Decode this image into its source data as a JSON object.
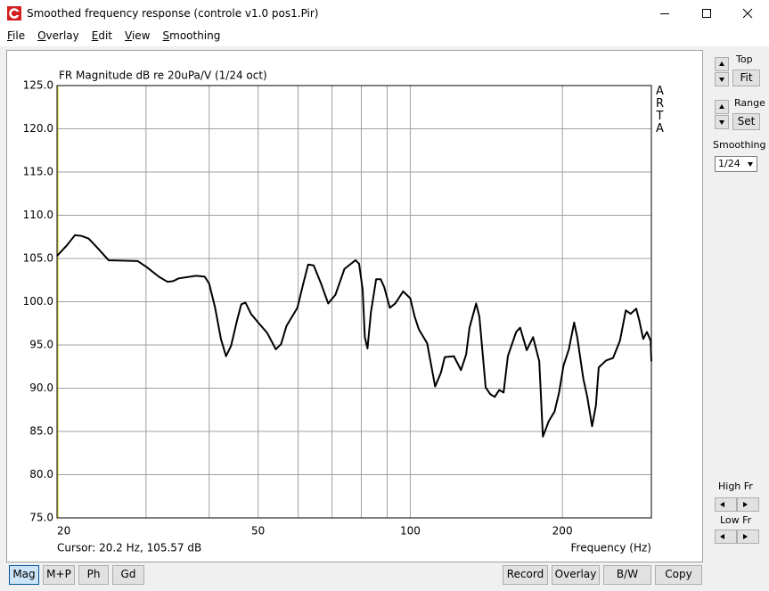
{
  "window": {
    "title": "Smoothed frequency response (controle v1.0 pos1.Pir)"
  },
  "menu": [
    "File",
    "Overlay",
    "Edit",
    "View",
    "Smoothing"
  ],
  "chart_data": {
    "type": "line",
    "title": "FR Magnitude dB re 20uPa/V (1/24 oct)",
    "watermark": "ARTA",
    "x_label": "Frequency (Hz)",
    "cursor_text": "Cursor: 20.2 Hz, 105.57 dB",
    "x": [
      20,
      20.9,
      21.7,
      22.4,
      23.1,
      23.9,
      25.3,
      28.9,
      30.1,
      31.8,
      33.1,
      34.0,
      34.8,
      37.7,
      39.2,
      40,
      41.1,
      42.2,
      43.2,
      44.2,
      45.4,
      46.3,
      47.2,
      48.4,
      50,
      52.1,
      54.2,
      55.5,
      56.9,
      59.8,
      61.3,
      62.8,
      64.4,
      66.6,
      68.8,
      71.1,
      74.1,
      77.9,
      79.2,
      80.5,
      81.3,
      82.3,
      83.6,
      85.6,
      87.4,
      88.8,
      91.1,
      93.4,
      96.8,
      100,
      102,
      104,
      108,
      112,
      115,
      117,
      122,
      126,
      129,
      131,
      135,
      137,
      141,
      144,
      147,
      150,
      153,
      156,
      162,
      165,
      170,
      175,
      180,
      183,
      188,
      193,
      197,
      201,
      206,
      211,
      214,
      220,
      224,
      229,
      233,
      236,
      244,
      252,
      260,
      267,
      273,
      280,
      284,
      289,
      294,
      299,
      300
    ],
    "series": [
      {
        "color": "#000000",
        "values": [
          105.3,
          106.5,
          107.7,
          107.6,
          107.3,
          106.4,
          104.8,
          104.7,
          104.0,
          102.9,
          102.3,
          102.4,
          102.7,
          103.0,
          102.9,
          102.1,
          99.3,
          95.7,
          93.7,
          94.9,
          97.8,
          99.7,
          99.9,
          98.6,
          97.6,
          96.4,
          94.5,
          95.1,
          97.2,
          99.3,
          101.9,
          104.3,
          104.2,
          102.1,
          99.8,
          100.8,
          103.8,
          104.8,
          104.4,
          101.4,
          95.9,
          94.6,
          98.8,
          102.6,
          102.6,
          101.7,
          99.3,
          99.8,
          101.2,
          100.4,
          98.3,
          96.8,
          95.2,
          90.2,
          91.8,
          93.6,
          93.7,
          92.1,
          93.9,
          97.0,
          99.8,
          98.3,
          90.1,
          89.3,
          89.0,
          89.8,
          89.5,
          93.7,
          96.5,
          97.0,
          94.4,
          95.9,
          93.1,
          84.4,
          86.2,
          87.3,
          89.5,
          92.6,
          94.5,
          97.6,
          95.9,
          91.1,
          89.0,
          85.6,
          88.0,
          92.4,
          93.2,
          93.5,
          95.5,
          99.0,
          98.6,
          99.2,
          97.8,
          95.7,
          96.5,
          95.5,
          93.1
        ]
      }
    ],
    "xlim": [
      20,
      300
    ],
    "xlog": true,
    "xticks": [
      20,
      50,
      100,
      200
    ],
    "xgrid_minor": [
      30,
      40,
      60,
      70,
      80,
      90
    ],
    "ylim": [
      75,
      125
    ],
    "yticks": [
      {
        "value": 75,
        "label": "75.0"
      },
      {
        "value": 80,
        "label": "80.0"
      },
      {
        "value": 85,
        "label": "85.0"
      },
      {
        "value": 90,
        "label": "90.0"
      },
      {
        "value": 95,
        "label": "95.0"
      },
      {
        "value": 100,
        "label": "100.0"
      },
      {
        "value": 105,
        "label": "105.0"
      },
      {
        "value": 110,
        "label": "110.0"
      },
      {
        "value": 115,
        "label": "115.0"
      },
      {
        "value": 120,
        "label": "120.0"
      },
      {
        "value": 125,
        "label": "125.0"
      }
    ],
    "grid": true
  },
  "side_panel": {
    "top_label": "Top",
    "fit": "Fit",
    "range_label": "Range",
    "set": "Set",
    "smoothing_label": "Smoothing",
    "smoothing_value": "1/24",
    "high_fr": "High Fr",
    "low_fr": "Low Fr"
  },
  "bottom_left": [
    "Mag",
    "M+P",
    "Ph",
    "Gd"
  ],
  "bottom_right": [
    "Record",
    "Overlay",
    "B/W",
    "Copy"
  ]
}
